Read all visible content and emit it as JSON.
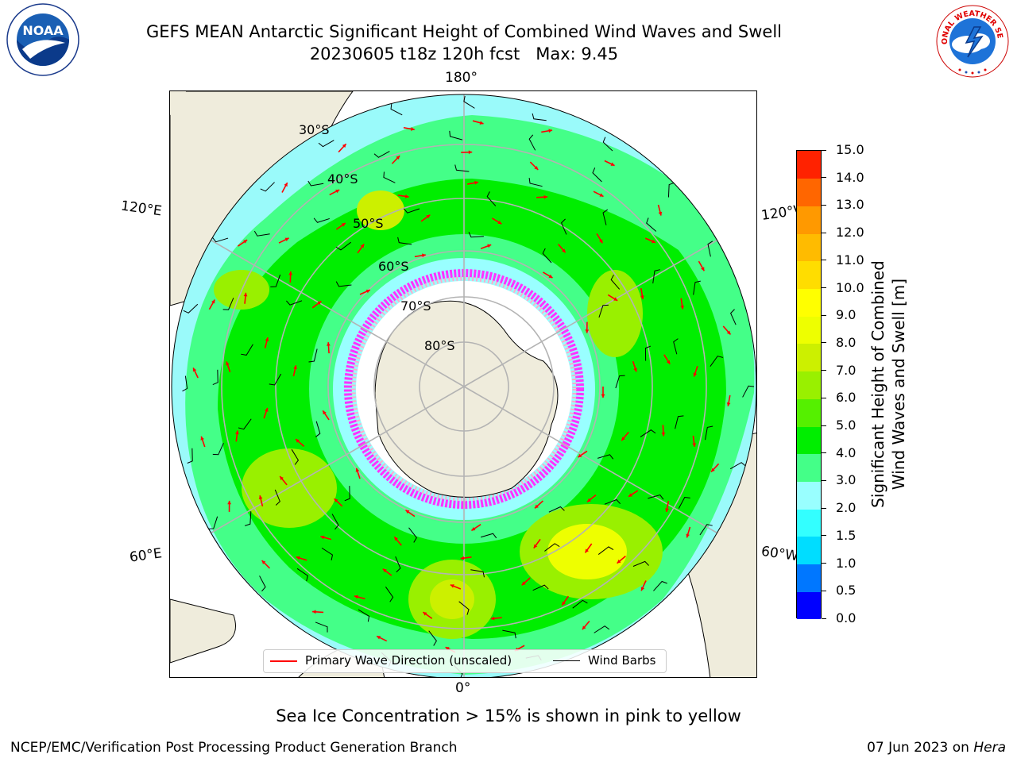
{
  "header": {
    "title_line1": "GEFS MEAN Antarctic Significant Height of Combined Wind Waves and Swell",
    "title_line2": "20230605 t18z 120h fcst   Max: 9.45"
  },
  "map": {
    "projection": "south-polar-stereographic",
    "longitude_labels": {
      "top": "180°",
      "bottom": "0°",
      "upper_left": "120°E",
      "upper_right": "120°W",
      "lower_left": "60°E",
      "lower_right": "60°W"
    },
    "latitude_labels": [
      "30°S",
      "40°S",
      "50°S",
      "60°S",
      "70°S",
      "80°S"
    ],
    "land_color": "#efecdc",
    "ocean_low_color": "#9afafa",
    "sea_ice_colors": [
      "#ff33ff",
      "#ffaacc",
      "#ffe066"
    ],
    "arrow_color": "#ff0000",
    "barb_color": "#000000"
  },
  "legend": {
    "primary_wave_label": "Primary Wave Direction (unscaled)",
    "wind_barbs_label": "Wind Barbs"
  },
  "colorbar": {
    "title_line1": "Significant Height of Combined",
    "title_line2": "Wind Waves and Swell [m]",
    "tick_labels": [
      "0.0",
      "0.5",
      "1.0",
      "1.5",
      "2.0",
      "3.0",
      "4.0",
      "5.0",
      "6.0",
      "7.0",
      "8.0",
      "9.0",
      "10.0",
      "11.0",
      "12.0",
      "13.0",
      "14.0",
      "15.0"
    ],
    "colors": [
      "#0000ff",
      "#0077ff",
      "#00ddff",
      "#33ffff",
      "#99ffff",
      "#44ff88",
      "#00ee00",
      "#55f000",
      "#99f000",
      "#ccf000",
      "#eeff00",
      "#ffff00",
      "#ffdd00",
      "#ffbb00",
      "#ff9900",
      "#ff6600",
      "#ff2200"
    ]
  },
  "caption": "Sea Ice Concentration > 15% is shown in pink to yellow",
  "footer": {
    "left": "NCEP/EMC/Verification Post Processing Product Generation Branch",
    "right_date": "07 Jun 2023 on ",
    "right_system": "Hera"
  },
  "logos": {
    "left": "noaa-logo",
    "left_text": "NOAA",
    "right": "nws-logo",
    "right_text": "NATIONAL WEATHER SERVICE"
  }
}
